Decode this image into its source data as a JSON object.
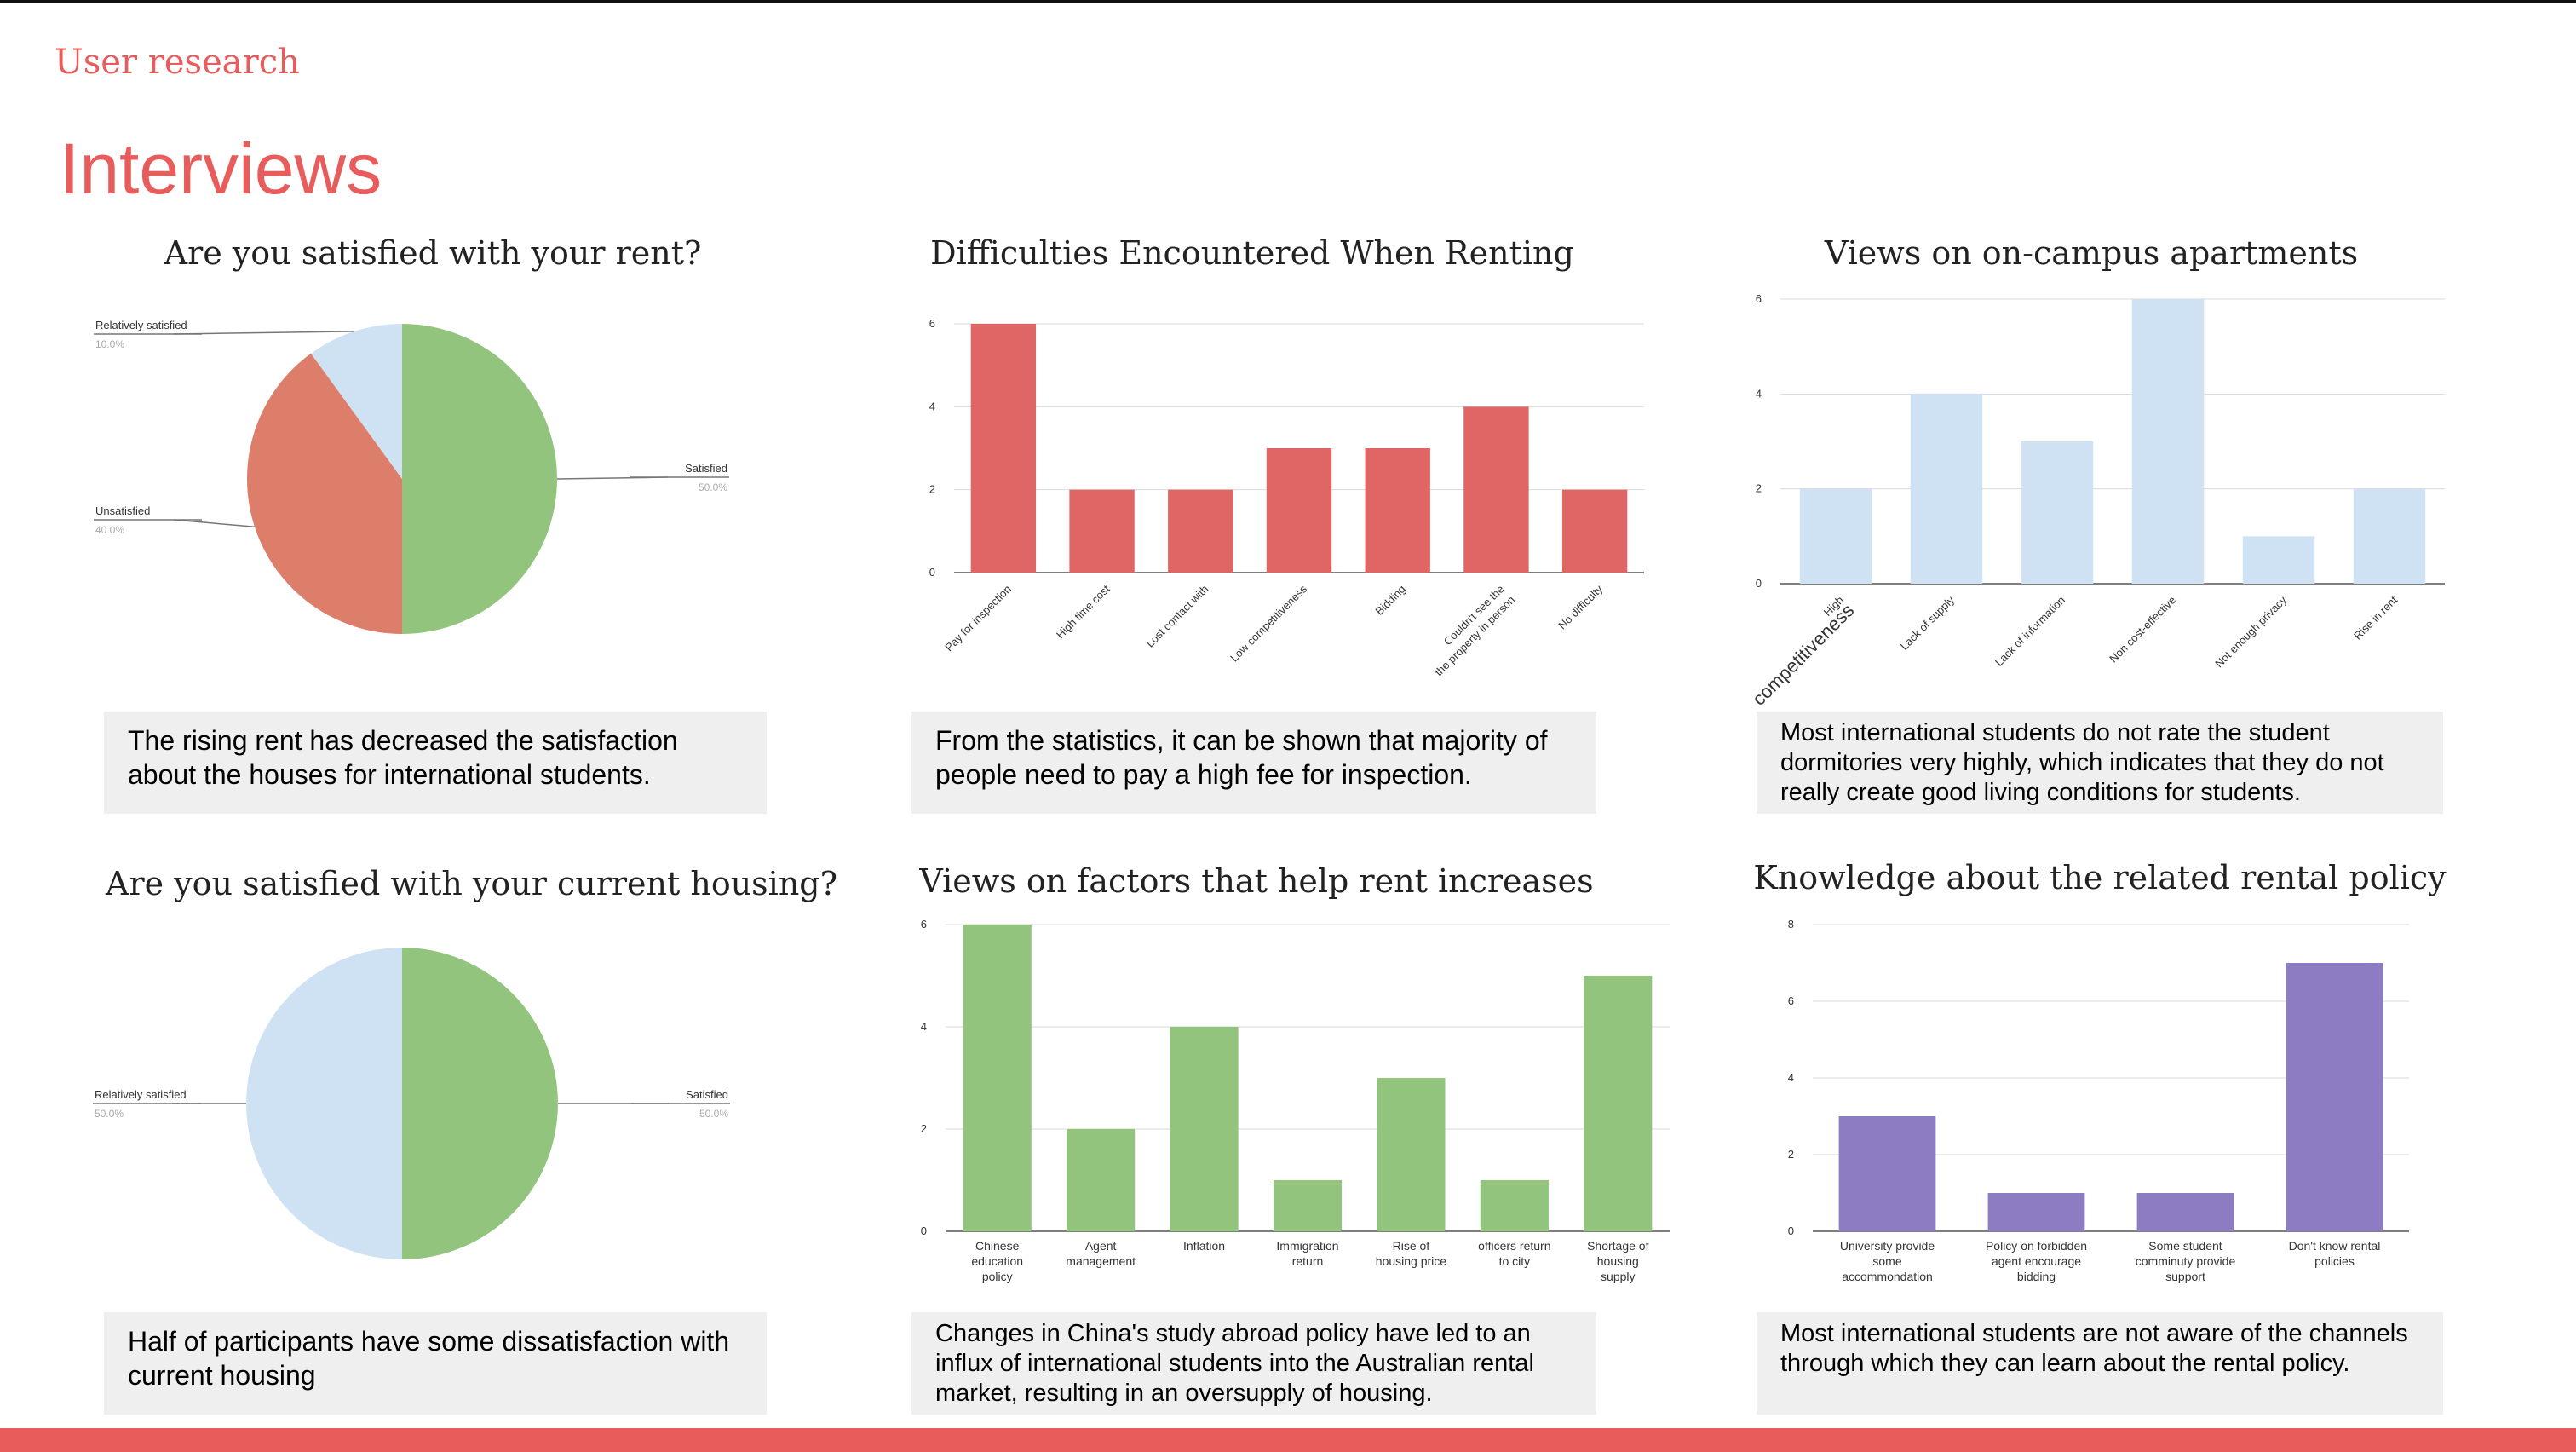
{
  "theme": {
    "accent": "#e85c5c",
    "bar_red": "#e06666",
    "bar_green": "#93c47d",
    "bar_blue": "#cfe2f3",
    "bar_purple": "#8e7cc3",
    "pie_orange": "#dd7e6b",
    "panel": "#efefef"
  },
  "header": {
    "section": "User research",
    "title": "Interviews"
  },
  "notes": {
    "rent": "The rising rent has decreased the satisfaction about the houses for international students.",
    "difficulties": "From the statistics, it can be shown that majority of  people need to pay a high fee for inspection.",
    "campus": "Most international students do not rate the student dormitories very highly, which indicates that they do not really create good living conditions for students.",
    "housing": "Half of participants have some dissatisfaction with current housing",
    "factors": "Changes in China's study abroad policy have led to an influx of international students into the Australian rental market, resulting in an oversupply of housing.",
    "policy": "Most international students are not aware of the channels through which they can learn about the rental policy."
  },
  "chart_data": [
    {
      "type": "pie",
      "title": "Are you satisfied with your rent?",
      "slices": [
        {
          "label": "Satisfied",
          "value": 50.0,
          "display": "50.0%",
          "color": "#93c47d"
        },
        {
          "label": "Unsatisfied",
          "value": 40.0,
          "display": "40.0%",
          "color": "#dd7e6b"
        },
        {
          "label": "Relatively satisfied",
          "value": 10.0,
          "display": "10.0%",
          "color": "#cfe2f3"
        }
      ]
    },
    {
      "type": "bar",
      "title": "Difficulties Encountered When Renting",
      "color": "#e06666",
      "categories": [
        "Pay for inspection",
        "High time cost",
        "Lost contact with",
        "Low competitiveness",
        "Bidding",
        "Couldn't see the\nthe property in person",
        "No difficulty"
      ],
      "values": [
        6,
        2,
        2,
        3,
        3,
        4,
        2
      ],
      "ylim": [
        0,
        6
      ],
      "yticks": [
        0,
        2,
        4,
        6
      ],
      "xlabel": "",
      "ylabel": ""
    },
    {
      "type": "bar",
      "title": "Views on on-campus apartments",
      "color": "#cfe2f3",
      "categories": [
        "High\ncompetitiveness",
        "Lack of supply",
        "Lack of information",
        "Non cost-effective",
        "Not enough privacy",
        "Rise in rent"
      ],
      "values": [
        2,
        4,
        3,
        6,
        1,
        2
      ],
      "ylim": [
        0,
        6
      ],
      "yticks": [
        0,
        2,
        4,
        6
      ],
      "xlabel": "",
      "ylabel": ""
    },
    {
      "type": "pie",
      "title": "Are you satisfied with your current housing?",
      "slices": [
        {
          "label": "Satisfied",
          "value": 50.0,
          "display": "50.0%",
          "color": "#93c47d"
        },
        {
          "label": "Relatively satisfied",
          "value": 50.0,
          "display": "50.0%",
          "color": "#cfe2f3"
        }
      ]
    },
    {
      "type": "bar",
      "title": "Views on factors that help rent increases",
      "color": "#93c47d",
      "categories": [
        "Chinese\neducation\npolicy",
        "Agent\nmanagement",
        "Inflation",
        "Immigration\nreturn",
        "Rise of\nhousing price",
        "officers return\nto city",
        "Shortage of\nhousing\nsupply"
      ],
      "values": [
        6,
        2,
        4,
        1,
        3,
        1,
        5
      ],
      "ylim": [
        0,
        6
      ],
      "yticks": [
        0,
        2,
        4,
        6
      ],
      "xlabel": "",
      "ylabel": ""
    },
    {
      "type": "bar",
      "title": "Knowledge about the related rental policy",
      "color": "#8e7cc3",
      "categories": [
        "University provide\nsome\naccommondation",
        "Policy on forbidden\nagent encourage\nbidding",
        "Some student\ncomminuty provide\nsupport",
        "Don't know rental\npolicies"
      ],
      "values": [
        3,
        1,
        1,
        7
      ],
      "ylim": [
        0,
        8
      ],
      "yticks": [
        0,
        2,
        4,
        6,
        8
      ],
      "xlabel": "",
      "ylabel": ""
    }
  ]
}
